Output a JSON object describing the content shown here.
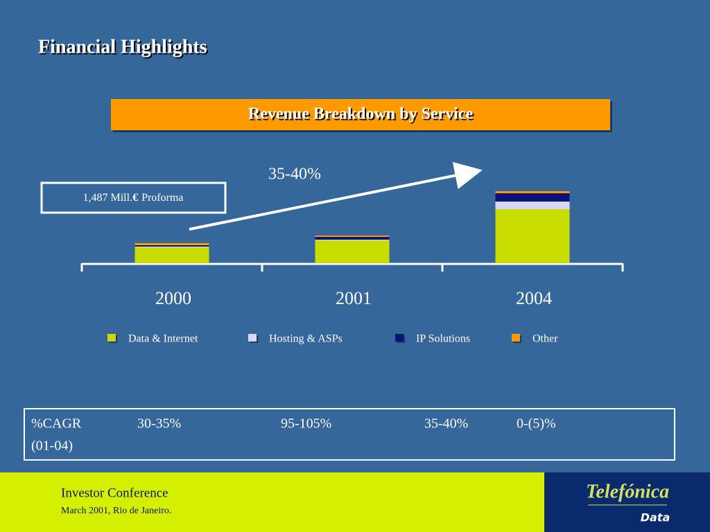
{
  "title": "Financial Highlights",
  "chart_data": {
    "type": "stacked_bar",
    "title": "Revenue Breakdown by Service",
    "categories": [
      "2000",
      "2001",
      "2004"
    ],
    "series": [
      {
        "name": "Data & Internet",
        "color": "#c8dc00",
        "values": [
          23,
          33,
          78
        ]
      },
      {
        "name": "Hosting & ASPs",
        "color": "#d8d8f8",
        "values": [
          1,
          1,
          11
        ]
      },
      {
        "name": "IP Solutions",
        "color": "#0a1478",
        "values": [
          2,
          4,
          12
        ]
      },
      {
        "name": "Other",
        "color": "#ff9900",
        "values": [
          3,
          2,
          3
        ]
      }
    ],
    "ylim": [
      0,
      110
    ],
    "annotation": "35-40%",
    "legend": "bottom"
  },
  "callout": {
    "amount": "1,487 Mill.",
    "currency": "€",
    "note": "Proforma"
  },
  "cagr_table": {
    "label": "%CAGR",
    "period": "(01-04)",
    "values": [
      "30-35%",
      "95-105%",
      "35-40%",
      "0-(5)%"
    ]
  },
  "footer": {
    "event": "Investor Conference",
    "date": "March 2001, Rio de Janeiro.",
    "logo": "Telefónica",
    "logo_sub": "Data"
  }
}
